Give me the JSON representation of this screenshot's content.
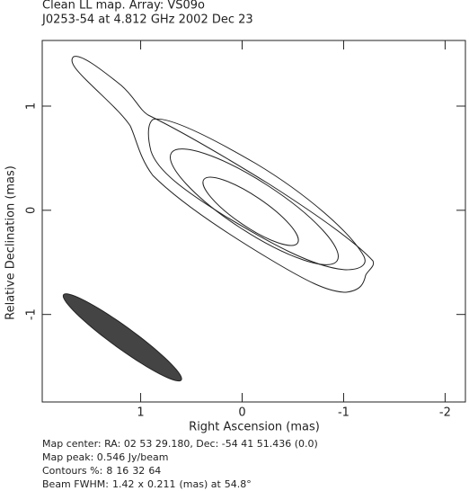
{
  "chart_data": {
    "type": "contour",
    "title": "Clean LL map.  Array:  VS09o",
    "subtitle": "J0253-54 at 4.812 GHz 2002 Dec 23",
    "x_label": "Right Ascension  (mas)",
    "y_label": "Relative Declination  (mas)",
    "xlim": [
      1.97,
      -2.2
    ],
    "ylim": [
      -1.84,
      1.63
    ],
    "xticks": [
      1,
      0,
      -1,
      -2
    ],
    "yticks": [
      -1,
      0,
      1
    ],
    "map_center": "Map center:  RA: 02 53 29.180,  Dec: -54 41 51.436 (0.0)",
    "map_peak": "Map peak: 0.546 Jy/beam",
    "contours": {
      "label": "Contours %:",
      "levels": [
        8,
        16,
        32,
        64
      ]
    },
    "beam": {
      "label": "Beam FWHM:",
      "major": 1.42,
      "times": "x",
      "minor": 0.211,
      "unit": "(mas) at",
      "pa": 54.8,
      "degree": "°",
      "color": "#444444"
    }
  }
}
